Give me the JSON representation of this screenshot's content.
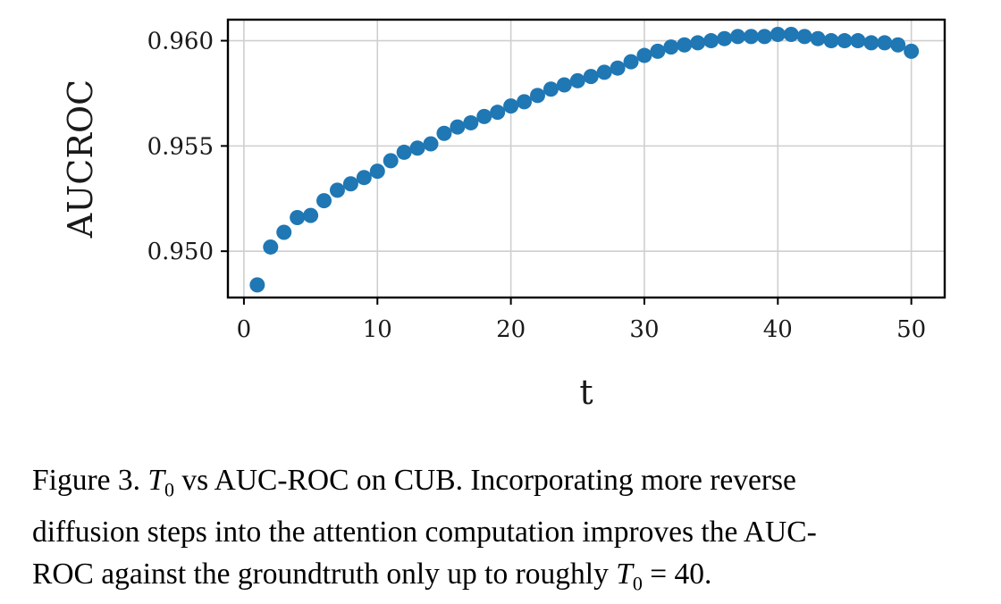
{
  "chart_data": {
    "type": "scatter",
    "title": "",
    "xlabel": "t",
    "ylabel": "AUCROC",
    "xlim": [
      -1.2,
      52.5
    ],
    "ylim": [
      0.9478,
      0.961
    ],
    "xticks": [
      0,
      10,
      20,
      30,
      40,
      50
    ],
    "xtick_labels": [
      "0",
      "10",
      "20",
      "30",
      "40",
      "50"
    ],
    "yticks": [
      0.95,
      0.955,
      0.96
    ],
    "ytick_labels": [
      "0.950",
      "0.955",
      "0.960"
    ],
    "grid": true,
    "marker_color": "#1f77b4",
    "x": [
      1,
      2,
      3,
      4,
      5,
      6,
      7,
      8,
      9,
      10,
      11,
      12,
      13,
      14,
      15,
      16,
      17,
      18,
      19,
      20,
      21,
      22,
      23,
      24,
      25,
      26,
      27,
      28,
      29,
      30,
      31,
      32,
      33,
      34,
      35,
      36,
      37,
      38,
      39,
      40,
      41,
      42,
      43,
      44,
      45,
      46,
      47,
      48,
      49,
      50
    ],
    "y": [
      0.9484,
      0.9502,
      0.9509,
      0.9516,
      0.9517,
      0.9524,
      0.9529,
      0.9532,
      0.9535,
      0.9538,
      0.9543,
      0.9547,
      0.9549,
      0.9551,
      0.9556,
      0.9559,
      0.9561,
      0.9564,
      0.9566,
      0.9569,
      0.9571,
      0.9574,
      0.9577,
      0.9579,
      0.9581,
      0.9583,
      0.9585,
      0.9587,
      0.959,
      0.9593,
      0.9595,
      0.9597,
      0.9598,
      0.9599,
      0.96,
      0.9601,
      0.9602,
      0.9602,
      0.9602,
      0.9603,
      0.9603,
      0.9602,
      0.9601,
      0.96,
      0.96,
      0.96,
      0.9599,
      0.9599,
      0.9598,
      0.9595
    ]
  },
  "caption": {
    "line1_prefix": "Figure 3. ",
    "line1_t": "T",
    "line1_sub": "0",
    "line1_suffix": " vs AUC-ROC on CUB. Incorporating more reverse",
    "line2": "diffusion steps into the attention computation improves the AUC-",
    "line3_prefix": "ROC against the groundtruth only up to roughly ",
    "line3_t": "T",
    "line3_sub": "0",
    "line3_suffix": " = 40."
  }
}
